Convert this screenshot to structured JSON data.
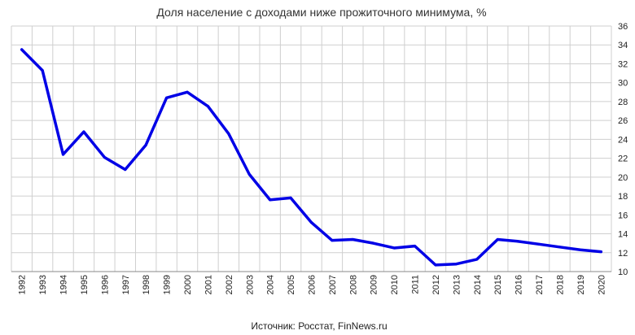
{
  "chart_data": {
    "type": "line",
    "title": "Доля население с доходами ниже прожиточного минимума, %",
    "source": "Источник: Росстат, FinNews.ru",
    "xlabel": "",
    "ylabel": "",
    "x": [
      "1992",
      "1993",
      "1994",
      "1995",
      "1996",
      "1997",
      "1998",
      "1999",
      "2000",
      "2001",
      "2002",
      "2003",
      "2004",
      "2005",
      "2006",
      "2007",
      "2008",
      "2009",
      "2010",
      "2011",
      "2012",
      "2013",
      "2014",
      "2015",
      "2016",
      "2017",
      "2018",
      "2019",
      "2020"
    ],
    "series": [
      {
        "name": "",
        "values": [
          33.5,
          31.3,
          22.4,
          24.8,
          22.1,
          20.8,
          23.4,
          28.4,
          29.0,
          27.5,
          24.6,
          20.3,
          17.6,
          17.8,
          15.2,
          13.3,
          13.4,
          13.0,
          12.5,
          12.7,
          10.7,
          10.8,
          11.3,
          13.4,
          13.2,
          12.9,
          12.6,
          12.3,
          12.1
        ]
      }
    ],
    "ylim": [
      10,
      36
    ],
    "yticks": [
      10,
      12,
      14,
      16,
      18,
      20,
      22,
      24,
      26,
      28,
      30,
      32,
      34,
      36
    ],
    "y_axis_side": "right",
    "grid": true,
    "legend": "none",
    "colors": {
      "line": "#0000e6",
      "grid": "#cfcfcf",
      "axis": "#888888"
    }
  }
}
